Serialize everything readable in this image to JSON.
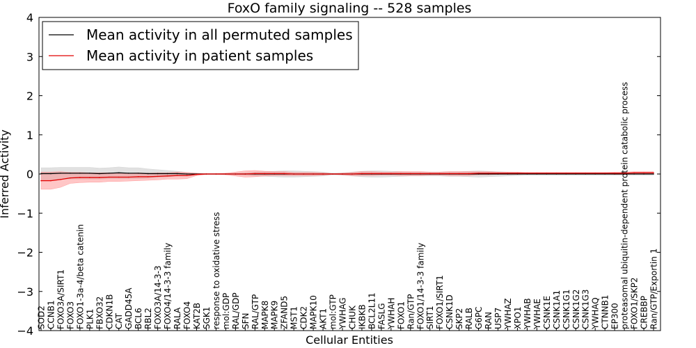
{
  "chart_data": {
    "type": "line",
    "title": "FoxO family signaling -- 528 samples",
    "xlabel": "Cellular Entities",
    "ylabel": "Inferred Activity",
    "ylim": [
      -4,
      4
    ],
    "yticks": [
      -4,
      -3,
      -2,
      -1,
      0,
      1,
      2,
      3,
      4
    ],
    "ytick_labels": [
      "−4",
      "−3",
      "−2",
      "−1",
      "0",
      "1",
      "2",
      "3",
      "4"
    ],
    "legend_position": "upper-left",
    "colors": {
      "permuted": "#000000",
      "patient": "#e00000",
      "permuted_band": "#c8c8c8",
      "patient_band": "#ff8080"
    },
    "categories": [
      "SOD2",
      "CCNB1",
      "FOXO3A/SIRT1",
      "FOXO3",
      "FOXO1-3a-4/beta catenin",
      "PLK1",
      "FBXO32",
      "CDKN1B",
      "CAT",
      "GADD45A",
      "BCL6",
      "RBL2",
      "FOXO3A/14-3-3",
      "FOXO4/14-3-3 family",
      "RALA",
      "FOXO4",
      "KAT2B",
      "SGK1",
      "response to oxidative stress",
      "mol:GDP",
      "RAL/GDP",
      "SFN",
      "RAL/GTP",
      "MAPK8",
      "MAPK9",
      "ZFAND5",
      "MST1",
      "CDK2",
      "MAPK10",
      "AKT1",
      "mol:GTP",
      "YWHAG",
      "CHUK",
      "IKBKB",
      "BCL2L11",
      "FASLG",
      "YWHAH",
      "FOXO1",
      "Ran/GTP",
      "FOXO1/14-3-3 family",
      "SIRT1",
      "FOXO1/SIRT1",
      "CSNK1D",
      "SKP2",
      "RALB",
      "G6PC",
      "RAN",
      "USP7",
      "YWHAZ",
      "XPO1",
      "YWHAB",
      "YWHAE",
      "CSNK1E",
      "CSNK1A1",
      "CSNK1G1",
      "CSNK1G2",
      "CSNK1G3",
      "YWHAQ",
      "CTNNB1",
      "EP300",
      "proteasomal ubiquitin-dependent protein catabolic process",
      "FOXO1/SKP2",
      "CREBBP",
      "Ran/GTP/Exportin 1"
    ],
    "series": [
      {
        "name": "Mean activity in all permuted samples",
        "color": "#000000",
        "values": [
          0.01,
          0.01,
          0.02,
          0.02,
          0.02,
          0.02,
          0.01,
          0.02,
          0.03,
          0.02,
          0.02,
          0.01,
          0.01,
          0.01,
          0.01,
          0.0,
          0.0,
          0.0,
          0.0,
          0.0,
          0.0,
          0.0,
          0.0,
          0.0,
          0.0,
          0.0,
          0.0,
          0.0,
          0.0,
          0.0,
          0.0,
          0.0,
          0.0,
          0.0,
          0.0,
          0.0,
          0.0,
          0.0,
          0.0,
          0.0,
          0.0,
          0.0,
          0.0,
          0.0,
          0.0,
          0.0,
          0.0,
          0.0,
          0.0,
          0.0,
          0.0,
          0.0,
          0.0,
          0.0,
          0.0,
          0.0,
          0.0,
          0.0,
          0.0,
          0.0,
          0.0,
          0.0,
          0.0,
          0.0
        ],
        "band": [
          0.15,
          0.15,
          0.15,
          0.15,
          0.15,
          0.15,
          0.14,
          0.14,
          0.15,
          0.14,
          0.14,
          0.12,
          0.1,
          0.08,
          0.06,
          0.04,
          0.02,
          0.01,
          0.01,
          0.01,
          0.02,
          0.03,
          0.05,
          0.06,
          0.07,
          0.08,
          0.08,
          0.07,
          0.06,
          0.05,
          0.02,
          0.03,
          0.05,
          0.07,
          0.08,
          0.08,
          0.07,
          0.06,
          0.05,
          0.05,
          0.05,
          0.05,
          0.06,
          0.06,
          0.07,
          0.08,
          0.07,
          0.06,
          0.05,
          0.04,
          0.03,
          0.03,
          0.03,
          0.03,
          0.03,
          0.03,
          0.03,
          0.03,
          0.03,
          0.03,
          0.03,
          0.03,
          0.03,
          0.03
        ]
      },
      {
        "name": "Mean activity in patient samples",
        "color": "#e00000",
        "values": [
          -0.17,
          -0.17,
          -0.14,
          -0.1,
          -0.09,
          -0.09,
          -0.09,
          -0.08,
          -0.08,
          -0.08,
          -0.07,
          -0.07,
          -0.06,
          -0.05,
          -0.04,
          -0.04,
          -0.01,
          0.0,
          0.0,
          0.0,
          0.0,
          0.0,
          0.01,
          0.01,
          0.01,
          0.01,
          0.0,
          0.0,
          0.0,
          0.0,
          0.0,
          0.0,
          0.0,
          0.01,
          0.01,
          0.01,
          0.01,
          0.01,
          0.01,
          0.01,
          0.01,
          0.01,
          0.01,
          0.01,
          0.01,
          0.02,
          0.02,
          0.02,
          0.02,
          0.02,
          0.02,
          0.02,
          0.02,
          0.02,
          0.02,
          0.02,
          0.02,
          0.02,
          0.02,
          0.02,
          0.02,
          0.03,
          0.03,
          0.03
        ],
        "band": [
          0.22,
          0.22,
          0.2,
          0.14,
          0.13,
          0.12,
          0.12,
          0.11,
          0.11,
          0.1,
          0.1,
          0.09,
          0.09,
          0.08,
          0.09,
          0.08,
          0.03,
          0.01,
          0.01,
          0.02,
          0.05,
          0.08,
          0.08,
          0.06,
          0.05,
          0.05,
          0.04,
          0.04,
          0.04,
          0.03,
          0.01,
          0.02,
          0.04,
          0.05,
          0.05,
          0.04,
          0.04,
          0.05,
          0.05,
          0.05,
          0.04,
          0.04,
          0.05,
          0.05,
          0.05,
          0.04,
          0.04,
          0.03,
          0.03,
          0.03,
          0.02,
          0.02,
          0.02,
          0.02,
          0.02,
          0.02,
          0.02,
          0.02,
          0.02,
          0.03,
          0.03,
          0.03,
          0.03,
          0.03
        ]
      }
    ]
  }
}
